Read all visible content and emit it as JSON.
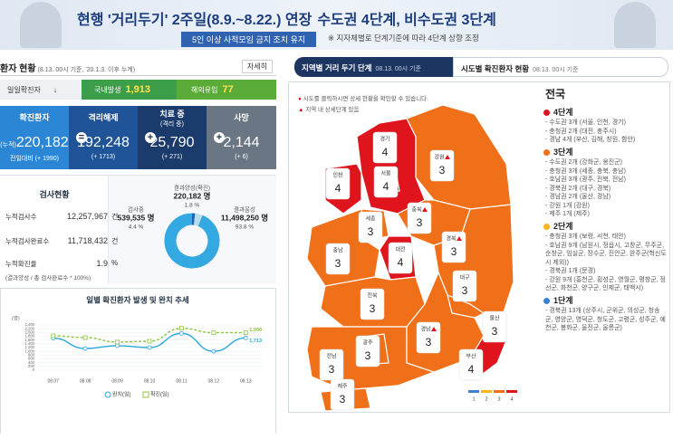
{
  "banner": {
    "title_prefix": "현행 '거리두기' 2주일(8.9.~8.22.) 연장",
    "title_suffix": "수도권 4단계, 비수도권 3단계",
    "subtitle": "5인 이상 사적모임 금지 조치 유지",
    "note": "※ 지자체별로 단계기준에 따라 4단계 상향 조정"
  },
  "status": {
    "title": "환자 현황",
    "basis": "(8.13. 00시 기준, '20.1.3. 이후 누계)",
    "more": "자세히",
    "daily": {
      "label": "일일확진자",
      "domestic_label": "국내발생",
      "domestic": "1,913",
      "overseas_label": "해외유입",
      "overseas": "77"
    },
    "cards": [
      {
        "label": "확진환자",
        "prefix": "(누적)",
        "value": "220,182",
        "change": "전일대비 (+ 1990)"
      },
      {
        "label": "격리해제",
        "value": "192,248",
        "change": "(+ 1713)"
      },
      {
        "label": "치료 중",
        "sub": "(격리 중)",
        "value": "25,790",
        "change": "(+ 271)"
      },
      {
        "label": "사망",
        "value": "2,144",
        "change": "(+ 6)"
      }
    ]
  },
  "tests": {
    "title": "검사현황",
    "rows": [
      {
        "label": "누적검사수",
        "value": "12,257,967",
        "unit": "건"
      },
      {
        "label": "누적검사완료수",
        "value": "11,718,432",
        "unit": "건"
      },
      {
        "label": "누적확진율",
        "value": "1.9",
        "unit": "%"
      }
    ],
    "formula": "(결과양성 / 총 검사완료수 * 100%)"
  },
  "chart_data": [
    {
      "type": "pie",
      "categories": [
        "결과양성(확진)",
        "검사중",
        "결과음성"
      ],
      "count_labels": [
        "220,182 명",
        "539,535 명",
        "11,498,250 명"
      ],
      "values": [
        1.8,
        4.4,
        93.8
      ],
      "value_labels": [
        "1.8 %",
        "4.4 %",
        "93.8 %"
      ],
      "colors": [
        "#1667b4",
        "#b9dcef",
        "#34a9e1"
      ]
    },
    {
      "type": "line",
      "title": "일별 확진환자 발생 및 완치 추세",
      "y_label": "(명)",
      "x": [
        "08.07",
        "08.08",
        "08.09",
        "08.10",
        "08.11",
        "08.12",
        "08.13"
      ],
      "series": [
        {
          "name": "완치(일)",
          "color": "#29a7dd",
          "values": [
            1700,
            1150,
            1300,
            1200,
            1950,
            1000,
            1713
          ],
          "value_labels": [
            null,
            null,
            null,
            null,
            null,
            null,
            "1,713"
          ]
        },
        {
          "name": "확진(일)",
          "color": "#8cc63e",
          "values": [
            1823,
            1729,
            1492,
            1537,
            2223,
            1987,
            1990
          ],
          "value_labels": [
            null,
            null,
            null,
            null,
            null,
            null,
            "1,990"
          ]
        }
      ],
      "ylim": [
        0,
        2400
      ],
      "yticks": [
        0,
        200,
        400,
        600,
        800,
        {
          "value": 1000,
          "label": "1,000"
        },
        {
          "value": 1200,
          "label": "1,200"
        },
        {
          "value": 1400,
          "label": "1,400"
        },
        {
          "value": 1600,
          "label": "1,600"
        },
        {
          "value": 1800,
          "label": "1,800"
        },
        {
          "value": 2000,
          "label": "2,000"
        },
        {
          "value": 2200,
          "label": "2,200"
        },
        {
          "value": 2400,
          "label": "2,400"
        }
      ],
      "grid": true,
      "legend": "bottom"
    }
  ],
  "map": {
    "tabs": [
      {
        "label": "지역별 거리 두기 단계",
        "basis": "08.13. 00시 기준"
      },
      {
        "label": "시도별 확진환자 현황",
        "basis": "08.13. 00시 기준"
      }
    ],
    "notes": [
      "시도를 클릭하시면 상세 현황을 확인할 수 있습니다.",
      "지역 내 상세단계 있음"
    ],
    "regions": [
      {
        "name": "강원",
        "level": 3,
        "detail": true
      },
      {
        "name": "경기",
        "level": 4,
        "detail": false
      },
      {
        "name": "서울",
        "level": 4,
        "detail": false
      },
      {
        "name": "인천",
        "level": 4,
        "detail": false
      },
      {
        "name": "충북",
        "level": 3,
        "detail": true
      },
      {
        "name": "세종",
        "level": 3,
        "detail": false
      },
      {
        "name": "충남",
        "level": 3,
        "detail": false
      },
      {
        "name": "대전",
        "level": 4,
        "detail": false
      },
      {
        "name": "경북",
        "level": 3,
        "detail": true
      },
      {
        "name": "대구",
        "level": 3,
        "detail": false
      },
      {
        "name": "전북",
        "level": 3,
        "detail": false
      },
      {
        "name": "전남",
        "level": 3,
        "detail": false
      },
      {
        "name": "경남",
        "level": 3,
        "detail": true
      },
      {
        "name": "울산",
        "level": 3,
        "detail": false
      },
      {
        "name": "부산",
        "level": 4,
        "detail": false
      },
      {
        "name": "광주",
        "level": 3,
        "detail": false
      },
      {
        "name": "제주",
        "level": 3,
        "detail": false
      }
    ],
    "legend": {
      "levels": [
        1,
        2,
        3,
        4
      ],
      "colors": [
        "#3f7fd0",
        "#f7b51c",
        "#f07019",
        "#e0141d"
      ]
    }
  },
  "stages": {
    "title": "전국",
    "groups": [
      {
        "label": "4단계",
        "color": "#e0141d",
        "items": [
          "- 수도권 3개 (서울, 인천, 경기)",
          "- 충청권 2개 (대전, 충주시)",
          "- 경남 4개 (부산, 김해, 창원, 함안)"
        ]
      },
      {
        "label": "3단계",
        "color": "#f07019",
        "items": [
          "- 수도권 2개 (강화군, 옹진군)",
          "- 충청권 3개 (세종, 충북, 충남)",
          "- 호남권 3개 (광주, 전북, 전남)",
          "- 경북권 2개 (대구, 경북)",
          "- 경남권 2개 (울산, 경남)",
          "- 강원 1개 (강원)",
          "- 제주 1개 (제주)"
        ]
      },
      {
        "label": "2단계",
        "color": "#f7b51c",
        "items": [
          "- 충청권 3개 (보령, 서천, 태안)",
          "- 호남권 9개 (남원시, 정읍시, 고창군, 무주군, 순창군, 임실군, 장수군, 진안군, 완주군(혁신도시 제외))",
          "- 경북권 1개 (문경)",
          "- 강원 9개 (홍천군, 횡성군, 영월군, 평창군, 정선군, 화천군, 양구군, 인제군, 태백시)"
        ]
      },
      {
        "label": "1단계",
        "color": "#3f7fd0",
        "items": [
          "- 경북권 13개 (상주시, 군위군, 의성군, 청송군, 영양군, 영덕군, 청도군, 고령군, 성주군, 예천군, 봉화군, 울진군, 울릉군)"
        ]
      }
    ]
  }
}
